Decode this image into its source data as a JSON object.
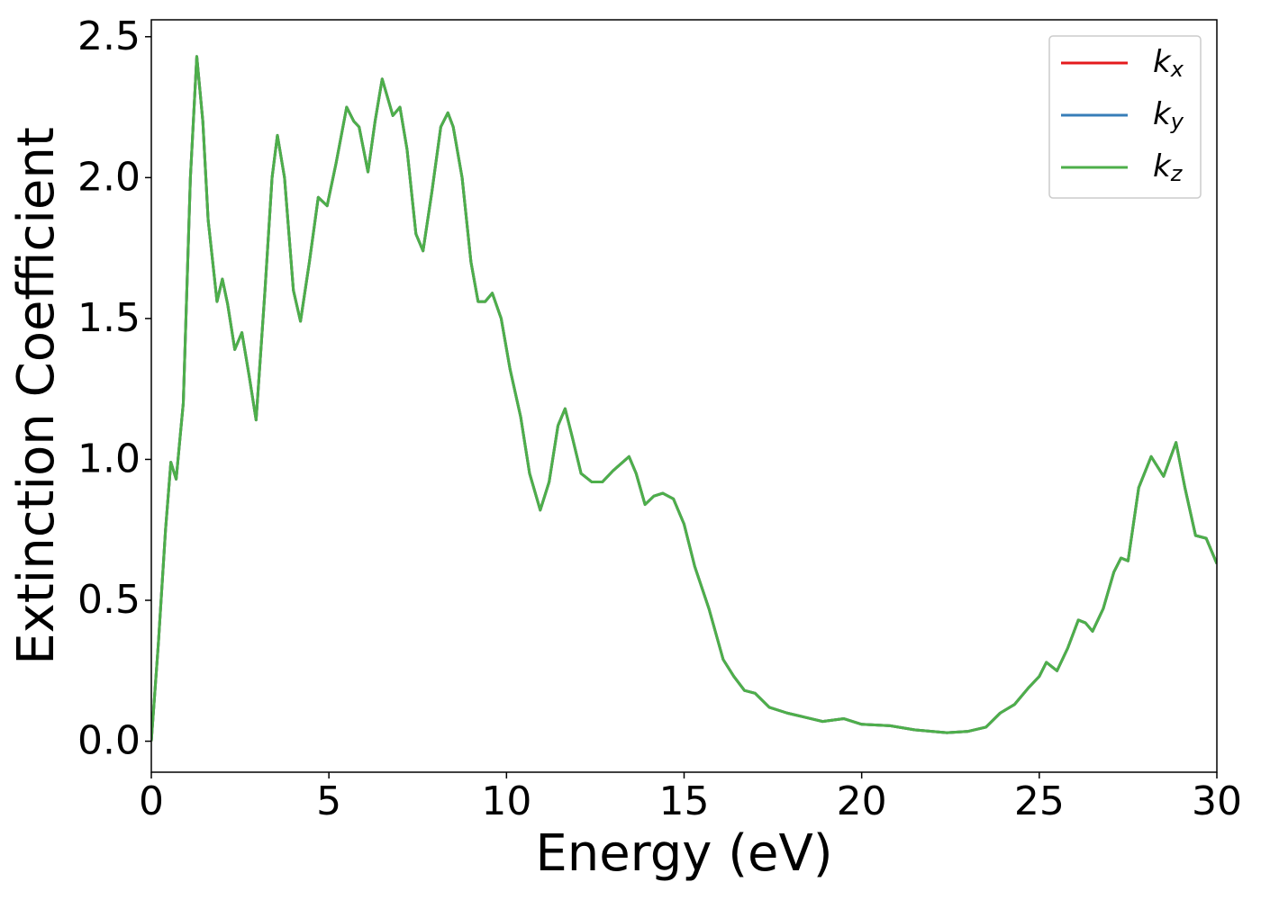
{
  "chart_data": {
    "type": "line",
    "x_label": "Energy (eV)",
    "y_label": "Extinction Coefficient",
    "x": [
      0,
      0.2,
      0.4,
      0.55,
      0.7,
      0.9,
      1.1,
      1.28,
      1.45,
      1.6,
      1.85,
      2.0,
      2.15,
      2.35,
      2.55,
      2.75,
      2.95,
      3.2,
      3.4,
      3.55,
      3.75,
      4.0,
      4.2,
      4.45,
      4.7,
      4.95,
      5.2,
      5.5,
      5.7,
      5.85,
      6.1,
      6.3,
      6.5,
      6.8,
      7.0,
      7.2,
      7.45,
      7.65,
      7.9,
      8.15,
      8.35,
      8.5,
      8.75,
      9.0,
      9.2,
      9.4,
      9.6,
      9.85,
      10.1,
      10.4,
      10.65,
      10.95,
      11.2,
      11.45,
      11.65,
      11.85,
      12.1,
      12.4,
      12.7,
      13.0,
      13.45,
      13.65,
      13.9,
      14.15,
      14.4,
      14.7,
      15.0,
      15.3,
      15.7,
      16.1,
      16.4,
      16.7,
      17.0,
      17.4,
      17.9,
      18.4,
      18.9,
      19.5,
      20.0,
      20.8,
      21.5,
      22.4,
      23.0,
      23.5,
      23.9,
      24.3,
      24.7,
      25.0,
      25.2,
      25.5,
      25.8,
      26.1,
      26.3,
      26.5,
      26.8,
      27.1,
      27.3,
      27.5,
      27.8,
      28.15,
      28.5,
      28.85,
      29.1,
      29.4,
      29.7,
      30.0
    ],
    "series": [
      {
        "name": "kx",
        "color": "#e41a1c",
        "values": [
          0.0,
          0.35,
          0.75,
          0.99,
          0.93,
          1.2,
          2.0,
          2.43,
          2.2,
          1.85,
          1.56,
          1.64,
          1.55,
          1.39,
          1.45,
          1.3,
          1.14,
          1.6,
          2.0,
          2.15,
          2.0,
          1.6,
          1.49,
          1.7,
          1.93,
          1.9,
          2.05,
          2.25,
          2.2,
          2.18,
          2.02,
          2.2,
          2.35,
          2.22,
          2.25,
          2.1,
          1.8,
          1.74,
          1.95,
          2.18,
          2.23,
          2.18,
          2.0,
          1.7,
          1.56,
          1.56,
          1.59,
          1.5,
          1.32,
          1.15,
          0.95,
          0.82,
          0.92,
          1.12,
          1.18,
          1.08,
          0.95,
          0.92,
          0.92,
          0.96,
          1.01,
          0.95,
          0.84,
          0.87,
          0.88,
          0.86,
          0.77,
          0.62,
          0.47,
          0.29,
          0.23,
          0.18,
          0.17,
          0.12,
          0.1,
          0.085,
          0.07,
          0.08,
          0.06,
          0.055,
          0.04,
          0.03,
          0.035,
          0.05,
          0.1,
          0.13,
          0.19,
          0.23,
          0.28,
          0.25,
          0.33,
          0.43,
          0.42,
          0.39,
          0.47,
          0.6,
          0.65,
          0.64,
          0.9,
          1.01,
          0.94,
          1.06,
          0.9,
          0.73,
          0.72,
          0.63
        ]
      },
      {
        "name": "ky",
        "color": "#377eb8",
        "values": [
          0.0,
          0.35,
          0.75,
          0.99,
          0.93,
          1.2,
          2.0,
          2.43,
          2.2,
          1.85,
          1.56,
          1.64,
          1.55,
          1.39,
          1.45,
          1.3,
          1.14,
          1.6,
          2.0,
          2.15,
          2.0,
          1.6,
          1.49,
          1.7,
          1.93,
          1.9,
          2.05,
          2.25,
          2.2,
          2.18,
          2.02,
          2.2,
          2.35,
          2.22,
          2.25,
          2.1,
          1.8,
          1.74,
          1.95,
          2.18,
          2.23,
          2.18,
          2.0,
          1.7,
          1.56,
          1.56,
          1.59,
          1.5,
          1.32,
          1.15,
          0.95,
          0.82,
          0.92,
          1.12,
          1.18,
          1.08,
          0.95,
          0.92,
          0.92,
          0.96,
          1.01,
          0.95,
          0.84,
          0.87,
          0.88,
          0.86,
          0.77,
          0.62,
          0.47,
          0.29,
          0.23,
          0.18,
          0.17,
          0.12,
          0.1,
          0.085,
          0.07,
          0.08,
          0.06,
          0.055,
          0.04,
          0.03,
          0.035,
          0.05,
          0.1,
          0.13,
          0.19,
          0.23,
          0.28,
          0.25,
          0.33,
          0.43,
          0.42,
          0.39,
          0.47,
          0.6,
          0.65,
          0.64,
          0.9,
          1.01,
          0.94,
          1.06,
          0.9,
          0.73,
          0.72,
          0.63
        ]
      },
      {
        "name": "kz",
        "color": "#4daf4a",
        "values": [
          0.0,
          0.35,
          0.75,
          0.99,
          0.93,
          1.2,
          2.0,
          2.43,
          2.2,
          1.85,
          1.56,
          1.64,
          1.55,
          1.39,
          1.45,
          1.3,
          1.14,
          1.6,
          2.0,
          2.15,
          2.0,
          1.6,
          1.49,
          1.7,
          1.93,
          1.9,
          2.05,
          2.25,
          2.2,
          2.18,
          2.02,
          2.2,
          2.35,
          2.22,
          2.25,
          2.1,
          1.8,
          1.74,
          1.95,
          2.18,
          2.23,
          2.18,
          2.0,
          1.7,
          1.56,
          1.56,
          1.59,
          1.5,
          1.32,
          1.15,
          0.95,
          0.82,
          0.92,
          1.12,
          1.18,
          1.08,
          0.95,
          0.92,
          0.92,
          0.96,
          1.01,
          0.95,
          0.84,
          0.87,
          0.88,
          0.86,
          0.77,
          0.62,
          0.47,
          0.29,
          0.23,
          0.18,
          0.17,
          0.12,
          0.1,
          0.085,
          0.07,
          0.08,
          0.06,
          0.055,
          0.04,
          0.03,
          0.035,
          0.05,
          0.1,
          0.13,
          0.19,
          0.23,
          0.28,
          0.25,
          0.33,
          0.43,
          0.42,
          0.39,
          0.47,
          0.6,
          0.65,
          0.64,
          0.9,
          1.01,
          0.94,
          1.06,
          0.9,
          0.73,
          0.72,
          0.63
        ]
      }
    ],
    "xlim": [
      0,
      30
    ],
    "xticks": [
      0,
      5,
      10,
      15,
      20,
      25,
      30
    ],
    "ylim": [
      -0.11,
      2.56
    ],
    "yticks": [
      {
        "value": 0,
        "label": "0.0"
      },
      0.5,
      {
        "value": 1,
        "label": "1.0"
      },
      1.5,
      {
        "value": 2,
        "label": "2.0"
      },
      2.5
    ],
    "grid": false,
    "legend": "upper right"
  }
}
